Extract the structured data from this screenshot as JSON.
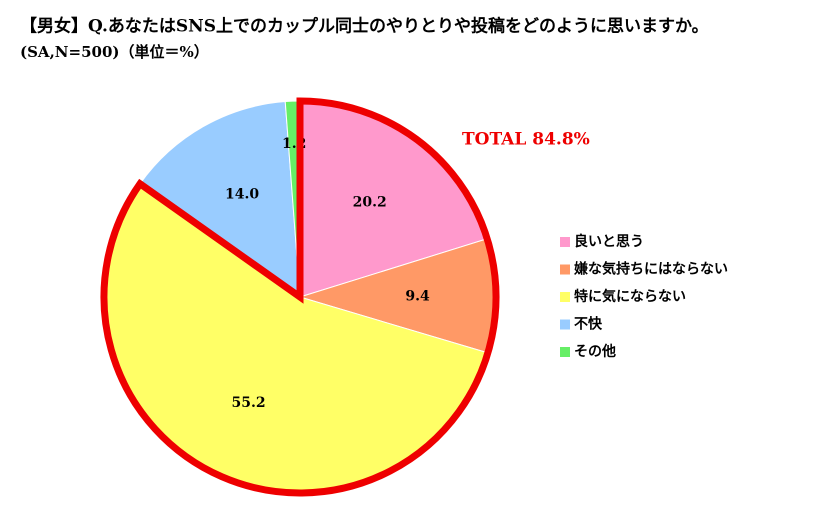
{
  "chart_data": {
    "type": "pie",
    "title": "【男女】Q.あなたはSNS上でのカップル同士のやりとりや投稿をどのように思いますか。",
    "subtitle": "(SA,N=500)（単位＝%）",
    "categories": [
      "良いと思う",
      "嫌な気持ちにはならない",
      "特に気にならない",
      "不快",
      "その他"
    ],
    "values": [
      20.2,
      9.4,
      55.2,
      14.0,
      1.2
    ],
    "value_labels": [
      "20.2",
      "9.4",
      "55.2",
      "14.0",
      "1.2"
    ],
    "colors": [
      "#ff99cc",
      "#ff9966",
      "#ffff66",
      "#99ccff",
      "#66ee66"
    ],
    "highlight": {
      "label": "TOTAL 84.8%",
      "slices": [
        0,
        1,
        2
      ],
      "color": "#ee0000"
    },
    "legend": "right"
  }
}
